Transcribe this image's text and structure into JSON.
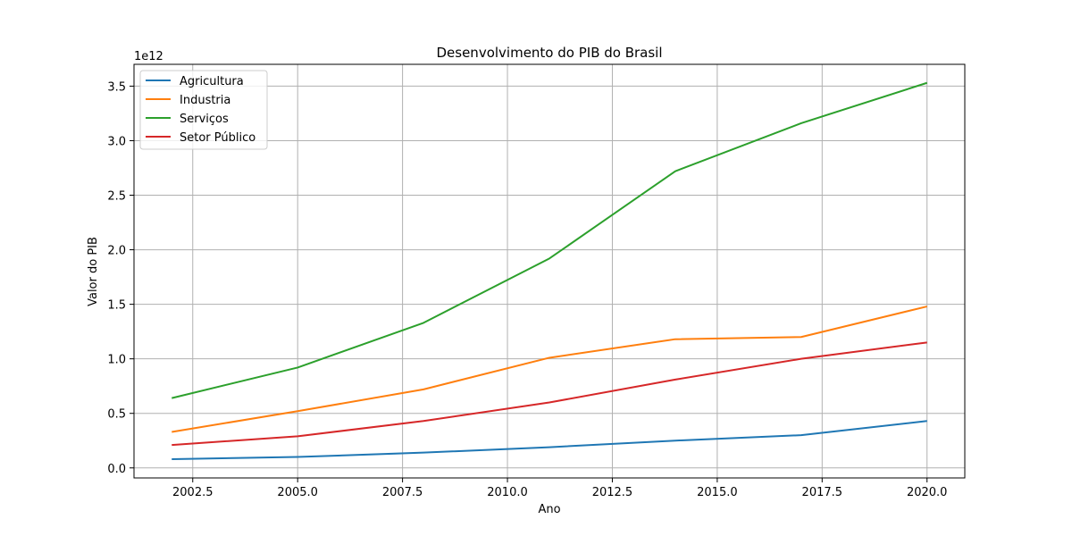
{
  "chart_data": {
    "type": "line",
    "title": "Desenvolvimento do PIB do Brasil",
    "xlabel": "Ano",
    "ylabel": "Valor do PIB",
    "y_offset_label": "1e12",
    "x": [
      2002,
      2005,
      2008,
      2011,
      2014,
      2017,
      2020
    ],
    "xlim": [
      2001.1,
      2020.9
    ],
    "ylim": [
      -0.092,
      3.7
    ],
    "x_ticks": [
      2002.5,
      2005.0,
      2007.5,
      2010.0,
      2012.5,
      2015.0,
      2017.5,
      2020.0
    ],
    "x_tick_labels": [
      "2002.5",
      "2005.0",
      "2007.5",
      "2010.0",
      "2012.5",
      "2015.0",
      "2017.5",
      "2020.0"
    ],
    "y_ticks": [
      0.0,
      0.5,
      1.0,
      1.5,
      2.0,
      2.5,
      3.0,
      3.5
    ],
    "y_tick_labels": [
      "0.0",
      "0.5",
      "1.0",
      "1.5",
      "2.0",
      "2.5",
      "3.0",
      "3.5"
    ],
    "grid": true,
    "legend_position": "top-left",
    "series": [
      {
        "name": "Agricultura",
        "color": "#1f77b4",
        "values": [
          0.08,
          0.1,
          0.14,
          0.19,
          0.25,
          0.3,
          0.43
        ]
      },
      {
        "name": "Industria",
        "color": "#ff7f0e",
        "values": [
          0.33,
          0.52,
          0.72,
          1.01,
          1.18,
          1.2,
          1.48
        ]
      },
      {
        "name": "Serviços",
        "color": "#2ca02c",
        "values": [
          0.64,
          0.92,
          1.33,
          1.92,
          2.72,
          3.16,
          3.53
        ]
      },
      {
        "name": "Setor Público",
        "color": "#d62728",
        "values": [
          0.21,
          0.29,
          0.43,
          0.6,
          0.81,
          1.0,
          1.15
        ]
      }
    ]
  }
}
